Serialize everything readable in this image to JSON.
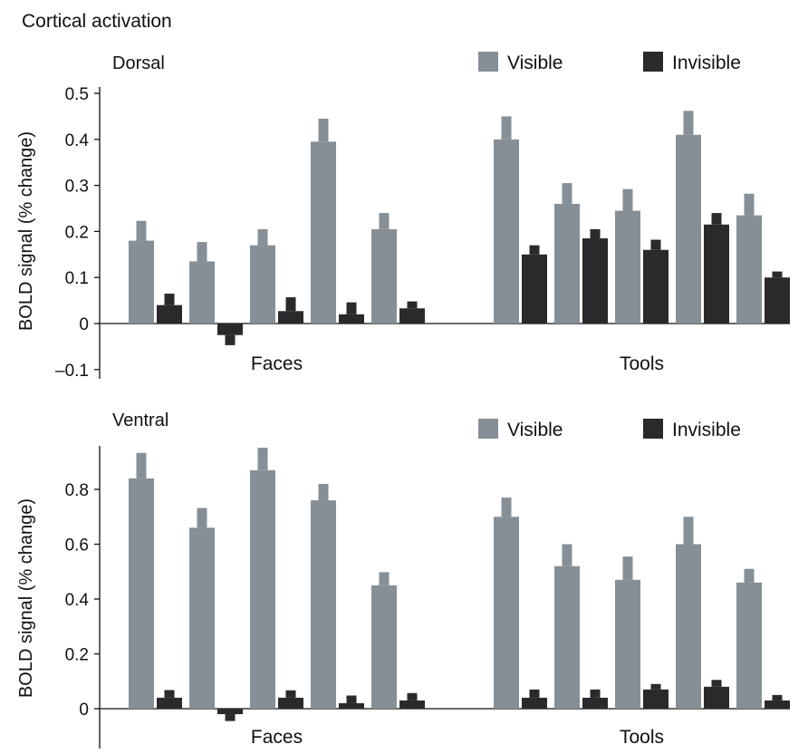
{
  "figure_title": "Cortical activation",
  "colors": {
    "visible": "#868f96",
    "invisible": "#2a2a2c",
    "axis": "#111111"
  },
  "chart_data": [
    {
      "type": "bar",
      "title": "Dorsal",
      "ylabel": "BOLD signal (% change)",
      "xlabel": "",
      "ylim": [
        -0.1,
        0.5
      ],
      "yticks": [
        -0.1,
        0,
        0.1,
        0.2,
        0.3,
        0.4,
        0.5
      ],
      "ytick_labels": [
        "–0.1",
        "0",
        "0.1",
        "0.2",
        "0.3",
        "0.4",
        "0.5"
      ],
      "legend": [
        "Visible",
        "Invisible"
      ],
      "legend_position": "top-right",
      "groups": [
        {
          "label": "Faces",
          "series": [
            {
              "name": "Visible",
              "values": [
                0.18,
                0.135,
                0.17,
                0.395,
                0.205
              ],
              "errors": [
                0.043,
                0.042,
                0.035,
                0.05,
                0.035
              ]
            },
            {
              "name": "Invisible",
              "values": [
                0.04,
                -0.025,
                0.027,
                0.02,
                0.033
              ],
              "errors": [
                0.025,
                0.022,
                0.03,
                0.026,
                0.015
              ]
            }
          ]
        },
        {
          "label": "Tools",
          "series": [
            {
              "name": "Visible",
              "values": [
                0.4,
                0.26,
                0.245,
                0.41,
                0.235
              ],
              "errors": [
                0.05,
                0.045,
                0.047,
                0.052,
                0.047
              ]
            },
            {
              "name": "Invisible",
              "values": [
                0.15,
                0.185,
                0.16,
                0.215,
                0.1
              ],
              "errors": [
                0.02,
                0.02,
                0.022,
                0.025,
                0.013
              ]
            }
          ]
        }
      ]
    },
    {
      "type": "bar",
      "title": "Ventral",
      "ylabel": "BOLD signal (% change)",
      "xlabel": "",
      "ylim": [
        -0.1,
        0.95
      ],
      "yticks": [
        0,
        0.2,
        0.4,
        0.6,
        0.8
      ],
      "ytick_labels": [
        "0",
        "0.2",
        "0.4",
        "0.6",
        "0.8"
      ],
      "legend": [
        "Visible",
        "Invisible"
      ],
      "legend_position": "top-right",
      "groups": [
        {
          "label": "Faces",
          "series": [
            {
              "name": "Visible",
              "values": [
                0.84,
                0.66,
                0.87,
                0.76,
                0.45
              ],
              "errors": [
                0.093,
                0.072,
                0.082,
                0.06,
                0.048
              ]
            },
            {
              "name": "Invisible",
              "values": [
                0.04,
                -0.02,
                0.04,
                0.02,
                0.03
              ],
              "errors": [
                0.028,
                0.025,
                0.027,
                0.028,
                0.027
              ]
            }
          ]
        },
        {
          "label": "Tools",
          "series": [
            {
              "name": "Visible",
              "values": [
                0.7,
                0.52,
                0.47,
                0.6,
                0.46
              ],
              "errors": [
                0.07,
                0.08,
                0.085,
                0.1,
                0.05
              ]
            },
            {
              "name": "Invisible",
              "values": [
                0.04,
                0.04,
                0.07,
                0.08,
                0.03
              ],
              "errors": [
                0.03,
                0.03,
                0.02,
                0.025,
                0.02
              ]
            }
          ]
        }
      ]
    }
  ]
}
